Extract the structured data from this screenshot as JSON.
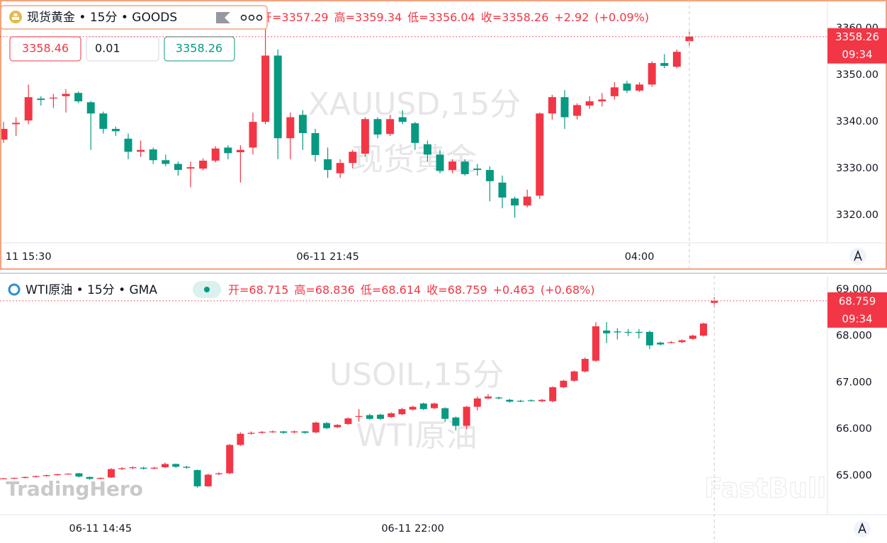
{
  "chart_data": [
    {
      "type": "candlestick",
      "legend": {
        "symbol": "现货黄金 • 15分 • GOODS",
        "fields": [
          {
            "label": "开=",
            "value": 3357.29
          },
          {
            "label": "高=",
            "value": 3359.34
          },
          {
            "label": "低=",
            "value": 3356.04
          },
          {
            "label": "收=",
            "value": 3358.26
          }
        ],
        "change": {
          "value": 2.92,
          "label": "+2.92"
        },
        "change_pct": {
          "value": 0.09,
          "label": "(+0.09%)"
        }
      },
      "trade": {
        "sell": 3358.46,
        "quantity": 0.01,
        "buy": 3358.26
      },
      "watermark": [
        "XAUUSD,15分",
        "现货黄金"
      ],
      "countdown": "09:34",
      "categories": [
        null,
        null,
        "11 15:30",
        null,
        null,
        null,
        null,
        null,
        null,
        null,
        null,
        null,
        null,
        null,
        null,
        null,
        null,
        null,
        null,
        null,
        null,
        null,
        null,
        null,
        null,
        null,
        "06-11 21:45",
        null,
        null,
        null,
        null,
        null,
        null,
        null,
        null,
        null,
        null,
        null,
        null,
        null,
        null,
        null,
        null,
        null,
        null,
        null,
        null,
        null,
        null,
        null,
        null,
        "04:00",
        null,
        null,
        null,
        null
      ],
      "open": [
        3336.2,
        3339.5,
        3340.3,
        3345,
        3345,
        3345.5,
        3346.2,
        3344.2,
        3341.8,
        3338.5,
        3336.4,
        3333.6,
        3334.1,
        3331.8,
        3331,
        3330,
        3330,
        3331.7,
        3334.5,
        3333.5,
        3334.5,
        3340,
        3354.2,
        3336.5,
        3341.5,
        3337.6,
        3332,
        3329,
        3331.2,
        3333.2,
        3340.6,
        3337.4,
        3341,
        3339.7,
        3335.2,
        3333,
        3329.7,
        3331.5,
        3330,
        3329.7,
        3327,
        3323.6,
        3322.1,
        3324.2,
        3341.8,
        3345.3,
        3341.3,
        3343.5,
        3344.4,
        3345.5,
        3348.2,
        3346.7,
        3348,
        3352.6,
        3351.8,
        3357.29
      ],
      "high": [
        3340,
        3341,
        3348,
        3345.5,
        3346,
        3347,
        3346.5,
        3344.5,
        3342.2,
        3339,
        3337.5,
        3336,
        3334.5,
        3333,
        3331.5,
        3331.5,
        3332.2,
        3334.8,
        3335,
        3335,
        3342,
        3360.5,
        3355.5,
        3342,
        3342.5,
        3338.5,
        3334.5,
        3332,
        3334,
        3341,
        3341,
        3341.5,
        3342.5,
        3340,
        3336,
        3334,
        3332,
        3332,
        3331,
        3330.5,
        3328.5,
        3324,
        3325.5,
        3342,
        3345.8,
        3346.8,
        3344,
        3345.5,
        3346.2,
        3348.5,
        3348.8,
        3348.5,
        3353,
        3354.5,
        3355.5,
        3359.34
      ],
      "low": [
        3335.5,
        3337,
        3339.5,
        3343.5,
        3343,
        3342,
        3344,
        3334,
        3337.5,
        3337,
        3332,
        3332.5,
        3331,
        3330.5,
        3328.5,
        3326,
        3329.6,
        3331.3,
        3332,
        3327,
        3333,
        3339.5,
        3332,
        3332,
        3334,
        3331.5,
        3328,
        3328,
        3330,
        3332.5,
        3336.5,
        3337,
        3339.5,
        3334,
        3331.5,
        3329,
        3329,
        3328.5,
        3328.5,
        3323,
        3321.5,
        3319.5,
        3321.7,
        3323.5,
        3340.5,
        3338.5,
        3340.5,
        3342.8,
        3343.3,
        3344.8,
        3346.2,
        3346.4,
        3347.5,
        3351.5,
        3351.5,
        3356.04
      ],
      "close": [
        3338.5,
        3339.8,
        3345.3,
        3344.7,
        3345.2,
        3346,
        3344.4,
        3341.8,
        3338.5,
        3338,
        3333.6,
        3334,
        3331.8,
        3331,
        3329.7,
        3330.3,
        3331.7,
        3334.3,
        3333.3,
        3334,
        3340,
        3354.2,
        3336.5,
        3341,
        3337.6,
        3332.9,
        3329.7,
        3331.2,
        3333.6,
        3340.6,
        3337.3,
        3340.6,
        3340,
        3335.5,
        3333,
        3329.5,
        3331.5,
        3328.8,
        3329.7,
        3327.3,
        3323.8,
        3322.1,
        3324,
        3341.8,
        3345.3,
        3341,
        3343.6,
        3344.4,
        3344.8,
        3347.4,
        3346.7,
        3348,
        3352.6,
        3352,
        3355,
        3358.26
      ],
      "up_color": "#f23645",
      "down_color": "#089981",
      "ylim": [
        3314.1,
        3366.1
      ],
      "yticks": [
        {
          "value": 3320,
          "label": "3320.00"
        },
        {
          "value": 3330,
          "label": "3330.00"
        },
        {
          "value": 3340,
          "label": "3340.00"
        },
        {
          "value": 3350,
          "label": "3350.00"
        },
        {
          "value": 3360,
          "label": "3360.00"
        }
      ]
    },
    {
      "type": "candlestick",
      "legend": {
        "symbol": "WTI原油 • 15分 • GMA",
        "fields": [
          {
            "label": "开=",
            "value": 68.715
          },
          {
            "label": "高=",
            "value": 68.836
          },
          {
            "label": "低=",
            "value": 68.614
          },
          {
            "label": "收=",
            "value": 68.759
          }
        ],
        "change": {
          "value": 0.463,
          "label": "+0.463"
        },
        "change_pct": {
          "value": 0.68,
          "label": "(+0.68%)"
        }
      },
      "watermark": [
        "USOIL,15分",
        "WTI原油"
      ],
      "countdown": "09:34",
      "categories": [
        null,
        null,
        null,
        null,
        null,
        null,
        null,
        null,
        null,
        "06-11 14:45",
        null,
        null,
        null,
        null,
        null,
        null,
        null,
        null,
        null,
        null,
        null,
        null,
        null,
        null,
        null,
        null,
        null,
        null,
        null,
        null,
        null,
        null,
        null,
        null,
        null,
        null,
        null,
        null,
        "06-11 22:00",
        null,
        null,
        null,
        null,
        null,
        null,
        null,
        null,
        null,
        null,
        null,
        null,
        null,
        null,
        null,
        null,
        null,
        null,
        null,
        null,
        null,
        null,
        null,
        null,
        null,
        null,
        null,
        null
      ],
      "open": [
        64.93,
        64.94,
        64.95,
        64.97,
        64.99,
        65.01,
        65.03,
        65.05,
        64.97,
        64.93,
        64.96,
        65.14,
        65.16,
        65.17,
        65.15,
        65.18,
        65.25,
        65.19,
        65.12,
        64.77,
        65.03,
        65.05,
        65.66,
        65.9,
        65.92,
        65.94,
        65.95,
        65.93,
        65.95,
        65.93,
        66.13,
        66.04,
        66.11,
        66.27,
        66.3,
        66.31,
        66.26,
        66.32,
        66.42,
        66.55,
        66.45,
        66.45,
        66.25,
        66.07,
        66.48,
        66.66,
        66.68,
        66.63,
        66.61,
        66.62,
        66.6,
        66.6,
        66.9,
        67.04,
        67.24,
        67.47,
        68.12,
        68.1,
        68.09,
        68.09,
        68.09,
        67.86,
        67.86,
        67.87,
        67.94,
        68.01,
        68.715
      ],
      "high": [
        64.95,
        64.96,
        64.98,
        65.0,
        65.02,
        65.04,
        65.05,
        65.06,
        64.98,
        64.96,
        65.16,
        65.18,
        65.2,
        65.19,
        65.19,
        65.28,
        65.26,
        65.21,
        65.13,
        65.04,
        65.07,
        65.68,
        65.93,
        65.95,
        65.96,
        65.97,
        65.96,
        65.97,
        65.96,
        66.16,
        66.15,
        66.11,
        66.25,
        66.43,
        66.33,
        66.33,
        66.36,
        66.46,
        66.5,
        66.57,
        66.57,
        66.47,
        66.27,
        66.5,
        66.7,
        66.75,
        66.7,
        66.65,
        66.63,
        66.64,
        66.65,
        66.92,
        67.06,
        67.26,
        67.54,
        68.3,
        68.3,
        68.17,
        68.15,
        68.15,
        68.12,
        67.88,
        67.89,
        67.93,
        68.03,
        68.29,
        68.836
      ],
      "low": [
        64.92,
        64.93,
        64.94,
        64.96,
        64.98,
        65.0,
        65.02,
        64.96,
        64.91,
        64.92,
        64.95,
        65.12,
        65.14,
        65.13,
        65.14,
        65.16,
        65.17,
        65.15,
        64.74,
        64.76,
        65.01,
        65.03,
        65.64,
        65.88,
        65.9,
        65.92,
        65.9,
        65.91,
        65.9,
        65.91,
        66.0,
        66.02,
        66.09,
        66.16,
        66.2,
        66.2,
        66.24,
        66.3,
        66.4,
        66.41,
        66.43,
        66.15,
        65.97,
        66.0,
        66.4,
        66.64,
        66.64,
        66.57,
        66.58,
        66.59,
        66.58,
        66.58,
        66.88,
        67.02,
        67.22,
        67.45,
        67.85,
        67.93,
        68.0,
        67.95,
        67.72,
        67.8,
        67.84,
        67.85,
        67.92,
        67.99,
        68.614
      ],
      "close": [
        64.94,
        64.95,
        64.97,
        64.99,
        65.01,
        65.03,
        65.04,
        64.98,
        64.93,
        64.95,
        65.14,
        65.16,
        65.18,
        65.15,
        65.17,
        65.25,
        65.19,
        65.17,
        64.77,
        65.02,
        65.05,
        65.66,
        65.9,
        65.92,
        65.94,
        65.95,
        65.92,
        65.95,
        65.92,
        66.14,
        66.02,
        66.09,
        66.23,
        66.28,
        66.22,
        66.22,
        66.34,
        66.43,
        66.48,
        66.43,
        66.55,
        66.22,
        66.07,
        66.48,
        66.66,
        66.7,
        66.66,
        66.59,
        66.6,
        66.61,
        66.63,
        66.9,
        67.04,
        67.24,
        67.51,
        68.21,
        68.06,
        68.08,
        68.08,
        68.07,
        67.8,
        67.82,
        67.87,
        67.91,
        68.01,
        68.27,
        68.759
      ],
      "up_color": "#f23645",
      "down_color": "#089981",
      "ylim": [
        64.16,
        69.29
      ],
      "yticks": [
        {
          "value": 65,
          "label": "65.000"
        },
        {
          "value": 66,
          "label": "66.000"
        },
        {
          "value": 67,
          "label": "67.000"
        },
        {
          "value": 68,
          "label": "68.000"
        },
        {
          "value": 69,
          "label": "69.000"
        }
      ]
    }
  ],
  "watermarks": [
    "TradingHero",
    "FastBull"
  ]
}
